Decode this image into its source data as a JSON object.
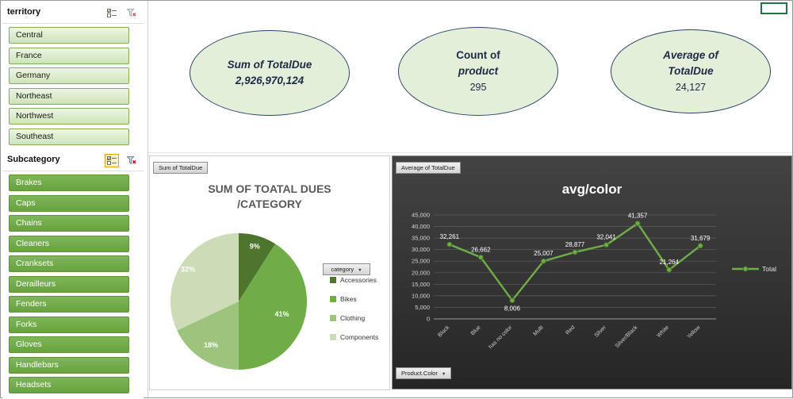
{
  "slicers": {
    "territory": {
      "title": "territory",
      "items": [
        "Central",
        "France",
        "Germany",
        "Northeast",
        "Northwest",
        "Southeast"
      ]
    },
    "subcategory": {
      "title": "Subcategory",
      "items": [
        "Brakes",
        "Caps",
        "Chains",
        "Cleaners",
        "Cranksets",
        "Derailleurs",
        "Fenders",
        "Forks",
        "Gloves",
        "Handlebars",
        "Headsets"
      ]
    }
  },
  "kpis": [
    {
      "line1": "Sum of TotalDue",
      "line2": "2,926,970,124"
    },
    {
      "line1": "Count of",
      "line2": "product",
      "line3": "295"
    },
    {
      "line1": "Average of",
      "line2": "TotalDue",
      "line3": "24,127"
    }
  ],
  "pie_panel": {
    "field_button": "Sum of TotalDue",
    "title_line1": "SUM OF TOATAL DUES",
    "title_line2": "/CATEGORY",
    "legend_button": "category",
    "dropdown_arrow": "▼"
  },
  "line_panel": {
    "field_button": "Average of TotalDue",
    "axis_field_button": "Product.Color",
    "dropdown_arrow": "▼",
    "title": "avg/color",
    "legend_label": "Total"
  },
  "chart_data": [
    {
      "type": "pie",
      "title": "SUM OF TOATAL DUES /CATEGORY",
      "categories": [
        "Accessories",
        "Bikes",
        "Clothing",
        "Components"
      ],
      "values": [
        9,
        41,
        18,
        32
      ],
      "unit": "percent",
      "colors": [
        "#4e752e",
        "#70ad47",
        "#9dc47d",
        "#cbdcb6"
      ],
      "legend_position": "right"
    },
    {
      "type": "line",
      "title": "avg/color",
      "categories": [
        "Black",
        "Blue",
        "has no color",
        "Multi",
        "Red",
        "Silver",
        "Silver/Black",
        "White",
        "Yellow"
      ],
      "series": [
        {
          "name": "Total",
          "values": [
            32261,
            26662,
            8006,
            25007,
            28877,
            32041,
            41357,
            21264,
            31679
          ],
          "color": "#70ad47"
        }
      ],
      "ylim": [
        0,
        45000
      ],
      "ytick_step": 5000,
      "grid": true,
      "legend_position": "right",
      "background": "dark",
      "data_labels": true
    }
  ]
}
